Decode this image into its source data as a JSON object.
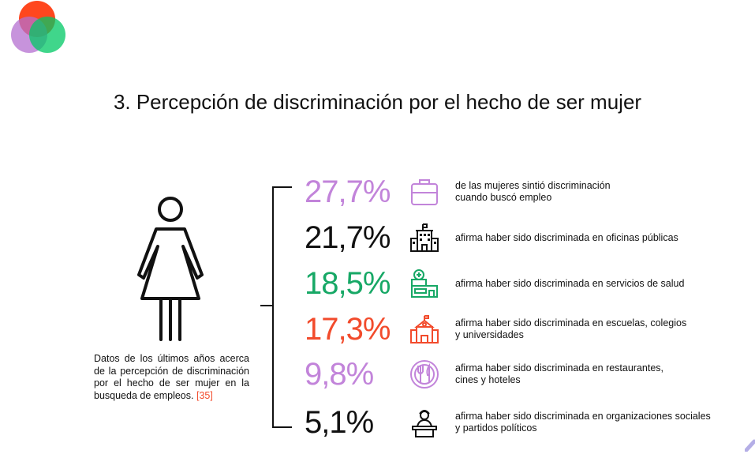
{
  "title": "3. Percepción de discriminación por el hecho de ser mujer",
  "note": {
    "text": "Datos de los últimos años acerca de la percepción de discriminación por el hecho de ser mujer en la busqueda de empleos.",
    "ref": "[35]"
  },
  "colors": {
    "purple": "#c284da",
    "black": "#111111",
    "green": "#17a866",
    "red": "#f24b2c"
  },
  "stats": [
    {
      "value": "27,7%",
      "line1": "de las mujeres sintió discriminación",
      "line2": "cuando buscó empleo",
      "icon": "briefcase-icon",
      "color": "#c284da"
    },
    {
      "value": "21,7%",
      "line1": "afirma haber sido discriminada en oficinas públicas",
      "line2": "",
      "icon": "government-building-icon",
      "color": "#111111"
    },
    {
      "value": "18,5%",
      "line1": "afirma haber sido discriminada en servicios de salud",
      "line2": "",
      "icon": "hospital-icon",
      "color": "#17a866"
    },
    {
      "value": "17,3%",
      "line1": "afirma haber sido discriminada en escuelas, colegios",
      "line2": "y universidades",
      "icon": "school-icon",
      "color": "#f24b2c"
    },
    {
      "value": "9,8%",
      "line1": "afirma haber sido discriminada en restaurantes,",
      "line2": "cines y hoteles",
      "icon": "restaurant-icon",
      "color": "#c284da"
    },
    {
      "value": "5,1%",
      "line1": "afirma haber sido discriminada en organizaciones sociales",
      "line2": "y partidos políticos",
      "icon": "speaker-podium-icon",
      "color": "#111111"
    }
  ]
}
